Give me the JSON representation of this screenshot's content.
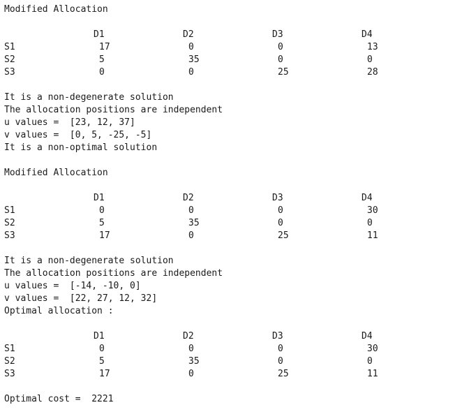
{
  "blocks": [
    {
      "type": "header",
      "text": "Modified Allocation"
    },
    {
      "type": "table",
      "columns": [
        "D1",
        "D2",
        "D3",
        "D4"
      ],
      "rows": [
        {
          "label": "S1",
          "values": [
            "17",
            "0",
            "0",
            "13"
          ]
        },
        {
          "label": "S2",
          "values": [
            "5",
            "35",
            "0",
            "0"
          ]
        },
        {
          "label": "S3",
          "values": [
            "0",
            "0",
            "25",
            "28"
          ]
        }
      ]
    },
    {
      "type": "status",
      "lines": [
        "It is a non-degenerate solution",
        "The allocation positions are independent",
        "u values =  [23, 12, 37]",
        "v values =  [0, 5, -25, -5]",
        "It is a non-optimal solution"
      ]
    },
    {
      "type": "header",
      "text": "Modified Allocation"
    },
    {
      "type": "table",
      "columns": [
        "D1",
        "D2",
        "D3",
        "D4"
      ],
      "rows": [
        {
          "label": "S1",
          "values": [
            "0",
            "0",
            "0",
            "30"
          ]
        },
        {
          "label": "S2",
          "values": [
            "5",
            "35",
            "0",
            "0"
          ]
        },
        {
          "label": "S3",
          "values": [
            "17",
            "0",
            "25",
            "11"
          ]
        }
      ]
    },
    {
      "type": "status",
      "lines": [
        "It is a non-degenerate solution",
        "The allocation positions are independent",
        "u values =  [-14, -10, 0]",
        "v values =  [22, 27, 12, 32]",
        "Optimal allocation :"
      ]
    },
    {
      "type": "table",
      "columns": [
        "D1",
        "D2",
        "D3",
        "D4"
      ],
      "rows": [
        {
          "label": "S1",
          "values": [
            "0",
            "0",
            "0",
            "30"
          ]
        },
        {
          "label": "S2",
          "values": [
            "5",
            "35",
            "0",
            "0"
          ]
        },
        {
          "label": "S3",
          "values": [
            "17",
            "0",
            "25",
            "11"
          ]
        }
      ]
    },
    {
      "type": "status",
      "lines": [
        "Optimal cost =  2221"
      ]
    }
  ]
}
